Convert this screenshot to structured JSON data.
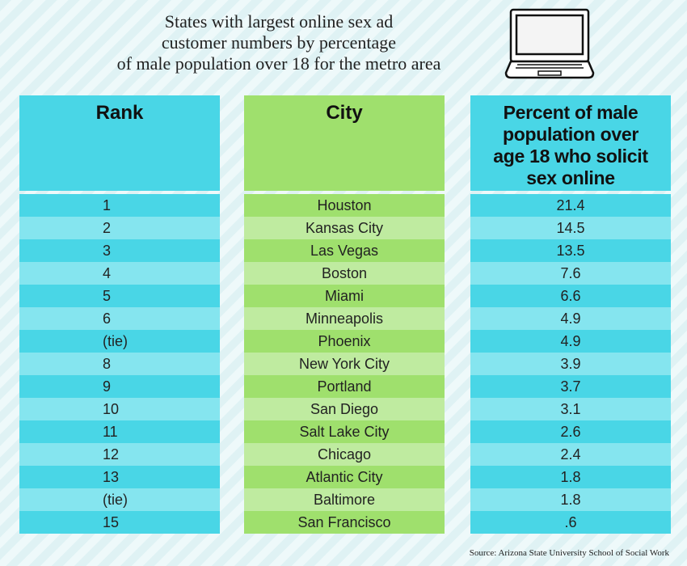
{
  "title_lines": [
    "States with largest online sex ad",
    "customer numbers by percentage",
    "of male population over 18 for the metro area"
  ],
  "laptop_icon": "laptop-icon",
  "source": "Source: Arizona State University School of Social Work",
  "colors": {
    "cyan": "#49d6e6",
    "cyan_light": "#85e5ef",
    "green": "#9fe06d",
    "green_light": "#bfeba0"
  },
  "chart_data": {
    "type": "table",
    "columns": [
      "Rank",
      "City",
      "Percent of male population over age 18 who solicit sex online"
    ],
    "rows": [
      {
        "rank": "1",
        "city": "Houston",
        "percent": "21.4"
      },
      {
        "rank": "2",
        "city": "Kansas City",
        "percent": "14.5"
      },
      {
        "rank": "3",
        "city": "Las Vegas",
        "percent": "13.5"
      },
      {
        "rank": "4",
        "city": "Boston",
        "percent": "7.6"
      },
      {
        "rank": "5",
        "city": "Miami",
        "percent": "6.6"
      },
      {
        "rank": "6",
        "city": "Minneapolis",
        "percent": "4.9"
      },
      {
        "rank": "(tie)",
        "city": "Phoenix",
        "percent": "4.9"
      },
      {
        "rank": "8",
        "city": "New York City",
        "percent": "3.9"
      },
      {
        "rank": "9",
        "city": "Portland",
        "percent": "3.7"
      },
      {
        "rank": "10",
        "city": "San Diego",
        "percent": "3.1"
      },
      {
        "rank": "11",
        "city": "Salt Lake City",
        "percent": "2.6"
      },
      {
        "rank": "12",
        "city": "Chicago",
        "percent": "2.4"
      },
      {
        "rank": "13",
        "city": "Atlantic City",
        "percent": "1.8"
      },
      {
        "rank": "(tie)",
        "city": "Baltimore",
        "percent": "1.8"
      },
      {
        "rank": "15",
        "city": "San Francisco",
        "percent": ".6"
      }
    ]
  }
}
